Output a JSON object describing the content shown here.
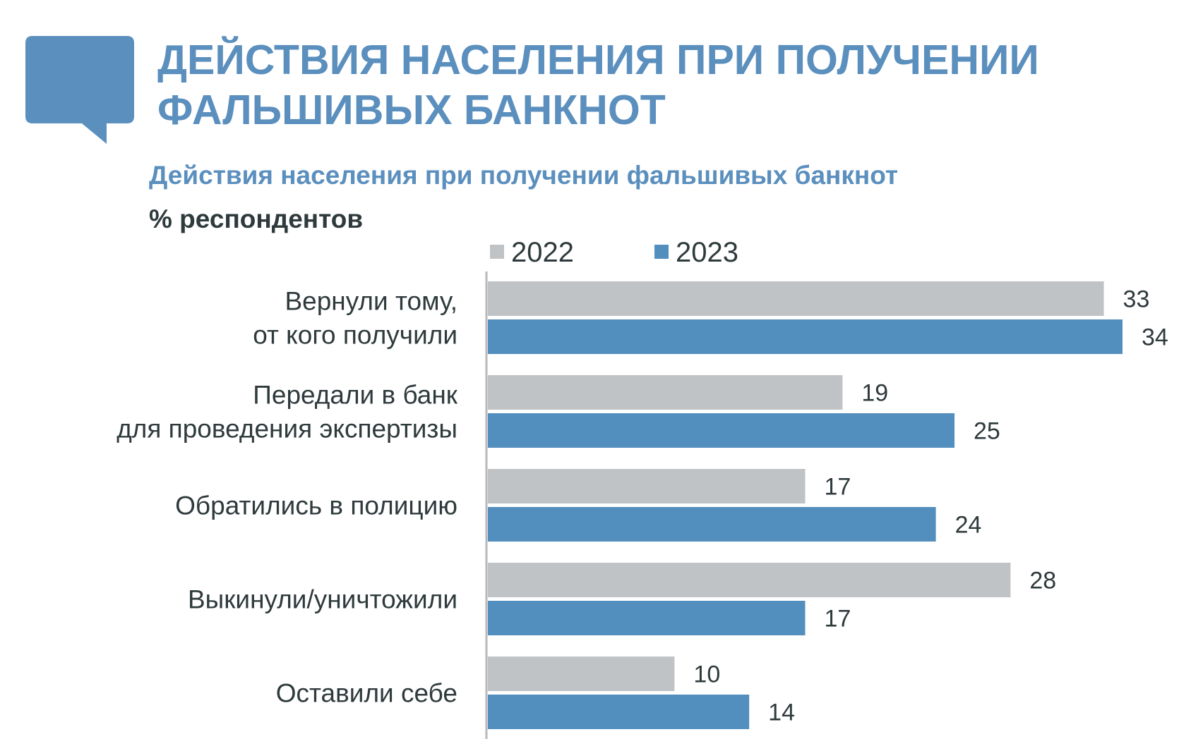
{
  "header": {
    "title_line1": "ДЕЙСТВИЯ НАСЕЛЕНИЯ ПРИ ПОЛУЧЕНИИ",
    "title_line2": "ФАЛЬШИВЫХ БАНКНОТ",
    "icon": "speech-bubble-icon"
  },
  "colors": {
    "accent": "#5b8fbe",
    "series_2022": "#c0c3c6",
    "series_2023": "#528ebe",
    "text": "#2f3a3c",
    "axis": "#b9b9b9"
  },
  "chart_data": {
    "type": "bar",
    "orientation": "horizontal",
    "title": "Действия населения при получении фальшивых банкнот",
    "unit_label": "% респондентов",
    "categories": [
      [
        "Вернули тому,",
        "от кого получили"
      ],
      [
        "Передали в банк",
        "для проведения экспертизы"
      ],
      [
        "Обратились в полицию"
      ],
      [
        "Выкинули/уничтожили"
      ],
      [
        "Оставили себе"
      ]
    ],
    "series": [
      {
        "name": "2022",
        "values": [
          33,
          19,
          17,
          28,
          10
        ]
      },
      {
        "name": "2023",
        "values": [
          34,
          25,
          24,
          17,
          14
        ]
      }
    ],
    "xlim": [
      0,
      34
    ],
    "legend": "top",
    "grid": false,
    "data_labels": true
  }
}
